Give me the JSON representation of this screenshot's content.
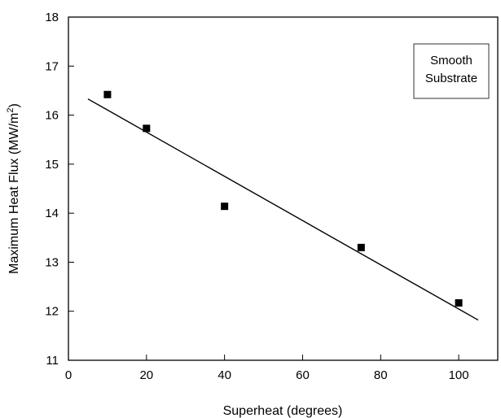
{
  "chart_data": {
    "type": "scatter",
    "xlabel": "Superheat (degrees)",
    "ylabel_main": "Maximum Heat Flux (MW/m",
    "ylabel_sup": "2",
    "ylabel_end": ")",
    "xlim": [
      0,
      110
    ],
    "ylim": [
      11,
      18
    ],
    "xticks": [
      0,
      20,
      40,
      60,
      80,
      100
    ],
    "yticks": [
      11,
      12,
      13,
      14,
      15,
      16,
      17,
      18
    ],
    "grid": false,
    "legend_placement": "top-right",
    "annotation": [
      "Smooth",
      "Substrate"
    ],
    "series": [
      {
        "marker": "square",
        "color": "#000000",
        "x": [
          10,
          20,
          40,
          75,
          100
        ],
        "y": [
          16.42,
          15.73,
          14.14,
          13.3,
          12.17
        ]
      }
    ],
    "fit_line": {
      "x": [
        5,
        105
      ],
      "y": [
        16.33,
        11.82
      ]
    }
  }
}
